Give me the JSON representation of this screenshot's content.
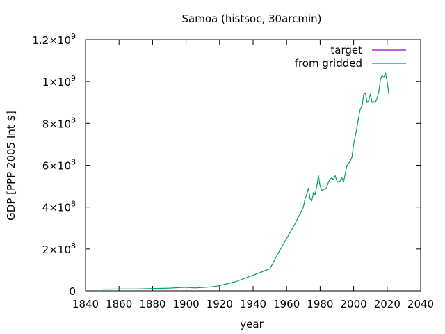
{
  "chart_data": {
    "type": "line",
    "title": "Samoa (histsoc, 30arcmin)",
    "xlabel": "year",
    "ylabel": "GDP [PPP 2005 Int $]",
    "xlim": [
      1840,
      2040
    ],
    "ylim": [
      0,
      1200000000
    ],
    "x_ticks": [
      1840,
      1860,
      1880,
      1900,
      1920,
      1940,
      1960,
      1980,
      2000,
      2020,
      2040
    ],
    "x_tick_labels": [
      "1840",
      "1860",
      "1880",
      "1900",
      "1920",
      "1940",
      "1960",
      "1980",
      "2000",
      "2020",
      "2040"
    ],
    "y_ticks": [
      0,
      200000000,
      400000000,
      600000000,
      800000000,
      1000000000,
      1200000000
    ],
    "y_tick_labels": [
      {
        "base": "0",
        "exp": ""
      },
      {
        "base": "2×10",
        "exp": "8"
      },
      {
        "base": "4×10",
        "exp": "8"
      },
      {
        "base": "6×10",
        "exp": "8"
      },
      {
        "base": "8×10",
        "exp": "8"
      },
      {
        "base": "1×10",
        "exp": "9"
      },
      {
        "base": "1.2×10",
        "exp": "9"
      }
    ],
    "grid": false,
    "legend_position": "top-right",
    "series": [
      {
        "name": "target",
        "color": "#9400d3",
        "x": [],
        "y": []
      },
      {
        "name": "from gridded",
        "color": "#009e73",
        "x": [
          1850,
          1860,
          1870,
          1880,
          1890,
          1900,
          1905,
          1910,
          1915,
          1920,
          1925,
          1930,
          1935,
          1940,
          1945,
          1950,
          1955,
          1960,
          1965,
          1970,
          1971,
          1972,
          1973,
          1974,
          1975,
          1976,
          1977,
          1978,
          1979,
          1980,
          1981,
          1982,
          1983,
          1984,
          1985,
          1986,
          1987,
          1988,
          1989,
          1990,
          1991,
          1992,
          1993,
          1994,
          1995,
          1996,
          1997,
          1998,
          1999,
          2000,
          2001,
          2002,
          2003,
          2004,
          2005,
          2006,
          2007,
          2008,
          2009,
          2010,
          2011,
          2012,
          2013,
          2014,
          2015,
          2016,
          2017,
          2018,
          2019,
          2020,
          2021
        ],
        "y": [
          8000000,
          8500000,
          9000000,
          11000000,
          13000000,
          17000000,
          14000000,
          16000000,
          19000000,
          25000000,
          35000000,
          45000000,
          60000000,
          75000000,
          90000000,
          105000000,
          180000000,
          250000000,
          320000000,
          400000000,
          440000000,
          460000000,
          490000000,
          440000000,
          430000000,
          470000000,
          460000000,
          500000000,
          550000000,
          500000000,
          480000000,
          485000000,
          485000000,
          495000000,
          520000000,
          535000000,
          540000000,
          530000000,
          550000000,
          525000000,
          520000000,
          525000000,
          540000000,
          520000000,
          560000000,
          600000000,
          610000000,
          620000000,
          640000000,
          700000000,
          740000000,
          780000000,
          830000000,
          870000000,
          880000000,
          940000000,
          945000000,
          900000000,
          910000000,
          940000000,
          900000000,
          905000000,
          900000000,
          920000000,
          950000000,
          1010000000,
          1030000000,
          1020000000,
          1040000000,
          1000000000,
          940000000
        ]
      }
    ]
  }
}
